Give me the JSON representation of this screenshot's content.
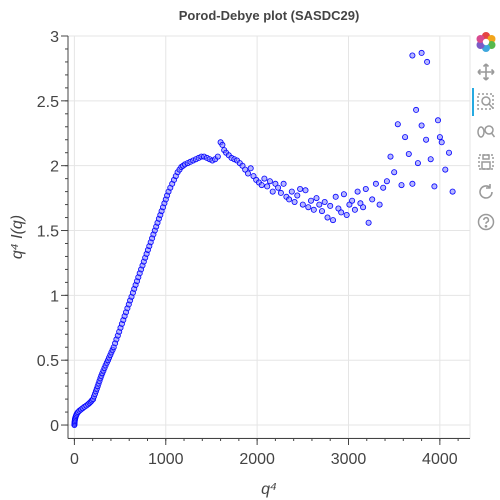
{
  "chart_data": {
    "type": "scatter",
    "title": "Porod-Debye plot (SASDC29)",
    "xlabel": "q⁴",
    "ylabel": "q⁴ I(q)",
    "xlim": [
      -70,
      4330
    ],
    "ylim": [
      -0.1,
      3.0
    ],
    "x_ticks": [
      0,
      1000,
      2000,
      3000,
      4000
    ],
    "x_tick_labels": [
      "0",
      "1000",
      "2000",
      "3000",
      "4000"
    ],
    "y_ticks": [
      0,
      0.5,
      1,
      1.5,
      2,
      2.5,
      3
    ],
    "y_tick_labels": [
      "0",
      "0.5",
      "1",
      "1.5",
      "2",
      "2.5",
      "3"
    ],
    "grid": true,
    "legend": false,
    "colors": {
      "marker_fill": "#7b7bff",
      "marker_stroke": "#0000ff",
      "grid": "#e5e5e5",
      "axis": "#444444"
    },
    "series": [
      {
        "points": [
          [
            0,
            0.0
          ],
          [
            1,
            0.01
          ],
          [
            2,
            0.02
          ],
          [
            3,
            0.03
          ],
          [
            5,
            0.04
          ],
          [
            8,
            0.05
          ],
          [
            12,
            0.06
          ],
          [
            16,
            0.07
          ],
          [
            22,
            0.08
          ],
          [
            30,
            0.09
          ],
          [
            40,
            0.1
          ],
          [
            55,
            0.11
          ],
          [
            72,
            0.12
          ],
          [
            90,
            0.13
          ],
          [
            110,
            0.14
          ],
          [
            130,
            0.15
          ],
          [
            150,
            0.16
          ],
          [
            165,
            0.17
          ],
          [
            180,
            0.18
          ],
          [
            192,
            0.19
          ],
          [
            205,
            0.2
          ],
          [
            215,
            0.22
          ],
          [
            225,
            0.24
          ],
          [
            235,
            0.26
          ],
          [
            245,
            0.28
          ],
          [
            255,
            0.3
          ],
          [
            265,
            0.32
          ],
          [
            275,
            0.34
          ],
          [
            285,
            0.36
          ],
          [
            295,
            0.38
          ],
          [
            305,
            0.4
          ],
          [
            318,
            0.42
          ],
          [
            330,
            0.44
          ],
          [
            342,
            0.46
          ],
          [
            355,
            0.48
          ],
          [
            368,
            0.5
          ],
          [
            380,
            0.52
          ],
          [
            393,
            0.54
          ],
          [
            405,
            0.56
          ],
          [
            418,
            0.58
          ],
          [
            430,
            0.6
          ],
          [
            445,
            0.63
          ],
          [
            460,
            0.66
          ],
          [
            475,
            0.69
          ],
          [
            490,
            0.72
          ],
          [
            505,
            0.75
          ],
          [
            520,
            0.78
          ],
          [
            535,
            0.81
          ],
          [
            550,
            0.84
          ],
          [
            565,
            0.87
          ],
          [
            580,
            0.9
          ],
          [
            595,
            0.93
          ],
          [
            610,
            0.96
          ],
          [
            625,
            0.99
          ],
          [
            640,
            1.02
          ],
          [
            655,
            1.05
          ],
          [
            670,
            1.08
          ],
          [
            685,
            1.11
          ],
          [
            700,
            1.14
          ],
          [
            715,
            1.17
          ],
          [
            730,
            1.2
          ],
          [
            745,
            1.23
          ],
          [
            760,
            1.26
          ],
          [
            775,
            1.29
          ],
          [
            790,
            1.32
          ],
          [
            805,
            1.35
          ],
          [
            820,
            1.38
          ],
          [
            835,
            1.41
          ],
          [
            850,
            1.44
          ],
          [
            865,
            1.47
          ],
          [
            880,
            1.5
          ],
          [
            895,
            1.53
          ],
          [
            910,
            1.56
          ],
          [
            925,
            1.59
          ],
          [
            940,
            1.62
          ],
          [
            955,
            1.65
          ],
          [
            970,
            1.68
          ],
          [
            985,
            1.71
          ],
          [
            1000,
            1.74
          ],
          [
            1015,
            1.77
          ],
          [
            1030,
            1.8
          ],
          [
            1050,
            1.83
          ],
          [
            1070,
            1.86
          ],
          [
            1090,
            1.89
          ],
          [
            1110,
            1.92
          ],
          [
            1130,
            1.95
          ],
          [
            1150,
            1.97
          ],
          [
            1170,
            1.99
          ],
          [
            1190,
            2.0
          ],
          [
            1210,
            2.01
          ],
          [
            1240,
            2.02
          ],
          [
            1270,
            2.03
          ],
          [
            1300,
            2.04
          ],
          [
            1330,
            2.05
          ],
          [
            1360,
            2.06
          ],
          [
            1390,
            2.07
          ],
          [
            1420,
            2.07
          ],
          [
            1450,
            2.06
          ],
          [
            1480,
            2.05
          ],
          [
            1510,
            2.04
          ],
          [
            1540,
            2.05
          ],
          [
            1570,
            2.07
          ],
          [
            1600,
            2.18
          ],
          [
            1620,
            2.16
          ],
          [
            1640,
            2.12
          ],
          [
            1660,
            2.1
          ],
          [
            1690,
            2.08
          ],
          [
            1720,
            2.06
          ],
          [
            1750,
            2.05
          ],
          [
            1780,
            2.04
          ],
          [
            1810,
            2.02
          ],
          [
            1840,
            2.0
          ],
          [
            1870,
            1.97
          ],
          [
            1900,
            1.94
          ],
          [
            1930,
            1.98
          ],
          [
            1960,
            1.92
          ],
          [
            1990,
            1.89
          ],
          [
            2020,
            1.87
          ],
          [
            2050,
            1.85
          ],
          [
            2080,
            1.9
          ],
          [
            2110,
            1.84
          ],
          [
            2140,
            1.88
          ],
          [
            2170,
            1.8
          ],
          [
            2200,
            1.86
          ],
          [
            2230,
            1.83
          ],
          [
            2260,
            1.79
          ],
          [
            2290,
            1.86
          ],
          [
            2320,
            1.76
          ],
          [
            2350,
            1.74
          ],
          [
            2380,
            1.8
          ],
          [
            2410,
            1.72
          ],
          [
            2440,
            1.77
          ],
          [
            2470,
            1.82
          ],
          [
            2500,
            1.7
          ],
          [
            2530,
            1.81
          ],
          [
            2560,
            1.68
          ],
          [
            2590,
            1.73
          ],
          [
            2620,
            1.66
          ],
          [
            2650,
            1.75
          ],
          [
            2680,
            1.7
          ],
          [
            2710,
            1.65
          ],
          [
            2740,
            1.72
          ],
          [
            2770,
            1.6
          ],
          [
            2800,
            1.69
          ],
          [
            2830,
            1.58
          ],
          [
            2860,
            1.76
          ],
          [
            2890,
            1.67
          ],
          [
            2920,
            1.64
          ],
          [
            2950,
            1.78
          ],
          [
            2980,
            1.62
          ],
          [
            3010,
            1.7
          ],
          [
            3040,
            1.73
          ],
          [
            3070,
            1.66
          ],
          [
            3100,
            1.8
          ],
          [
            3130,
            1.71
          ],
          [
            3160,
            1.68
          ],
          [
            3190,
            1.82
          ],
          [
            3220,
            1.56
          ],
          [
            3260,
            1.74
          ],
          [
            3300,
            1.86
          ],
          [
            3340,
            1.7
          ],
          [
            3380,
            1.83
          ],
          [
            3420,
            1.88
          ],
          [
            3460,
            2.07
          ],
          [
            3500,
            1.95
          ],
          [
            3540,
            2.32
          ],
          [
            3580,
            1.85
          ],
          [
            3620,
            2.22
          ],
          [
            3660,
            2.09
          ],
          [
            3700,
            1.86
          ],
          [
            3740,
            2.43
          ],
          [
            3760,
            2.02
          ],
          [
            3800,
            2.31
          ],
          [
            3850,
            2.2
          ],
          [
            3900,
            2.05
          ],
          [
            3940,
            1.84
          ],
          [
            3980,
            2.35
          ],
          [
            4020,
            2.18
          ],
          [
            4060,
            1.97
          ],
          [
            4100,
            2.1
          ],
          [
            4140,
            1.8
          ],
          [
            3700,
            2.85
          ],
          [
            3800,
            2.87
          ],
          [
            3860,
            2.8
          ],
          [
            4000,
            2.22
          ]
        ]
      }
    ]
  },
  "toolbar": {
    "tools": [
      {
        "name": "bokeh-logo-icon"
      },
      {
        "name": "pan-tool-icon",
        "active": true
      },
      {
        "name": "box-zoom-tool-icon"
      },
      {
        "name": "wheel-zoom-tool-icon"
      },
      {
        "name": "save-tool-icon"
      },
      {
        "name": "reset-tool-icon"
      },
      {
        "name": "help-tool-icon"
      }
    ]
  }
}
